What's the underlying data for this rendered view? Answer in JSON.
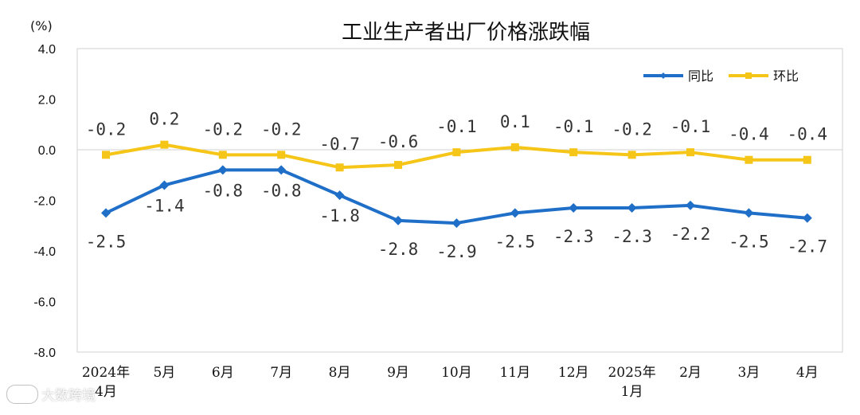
{
  "chart_data": {
    "type": "line",
    "title": "工业生产者出厂价格涨跌幅",
    "unit": "(%)",
    "ylim": [
      -8.0,
      4.0
    ],
    "yticks": [
      "4.0",
      "2.0",
      "0.0",
      "-2.0",
      "-4.0",
      "-6.0",
      "-8.0"
    ],
    "categories": [
      [
        "2024年",
        "4月"
      ],
      [
        "5月"
      ],
      [
        "6月"
      ],
      [
        "7月"
      ],
      [
        "8月"
      ],
      [
        "9月"
      ],
      [
        "10月"
      ],
      [
        "11月"
      ],
      [
        "12月"
      ],
      [
        "2025年",
        "1月"
      ],
      [
        "2月"
      ],
      [
        "3月"
      ],
      [
        "4月"
      ]
    ],
    "grid": false,
    "legend_position": "top-right",
    "series": [
      {
        "name": "同比",
        "color": "#1f6fc8",
        "marker": "diamond",
        "values": [
          -2.5,
          -1.4,
          -0.8,
          -0.8,
          -1.8,
          -2.8,
          -2.9,
          -2.5,
          -2.3,
          -2.3,
          -2.2,
          -2.5,
          -2.7
        ],
        "labels": [
          "-2.5",
          "-1.4",
          "-0.8",
          "-0.8",
          "-1.8",
          "-2.8",
          "-2.9",
          "-2.5",
          "-2.3",
          "-2.3",
          "-2.2",
          "-2.5",
          "-2.7"
        ]
      },
      {
        "name": "环比",
        "color": "#f5c518",
        "marker": "square",
        "values": [
          -0.2,
          0.2,
          -0.2,
          -0.2,
          -0.7,
          -0.6,
          -0.1,
          0.1,
          -0.1,
          -0.2,
          -0.1,
          -0.4,
          -0.4
        ],
        "labels": [
          "-0.2",
          "0.2",
          "-0.2",
          "-0.2",
          "-0.7",
          "-0.6",
          "-0.1",
          "0.1",
          "-0.1",
          "-0.2",
          "-0.1",
          "-0.4",
          "-0.4"
        ]
      }
    ]
  },
  "watermark": {
    "text": "大数跨境"
  }
}
